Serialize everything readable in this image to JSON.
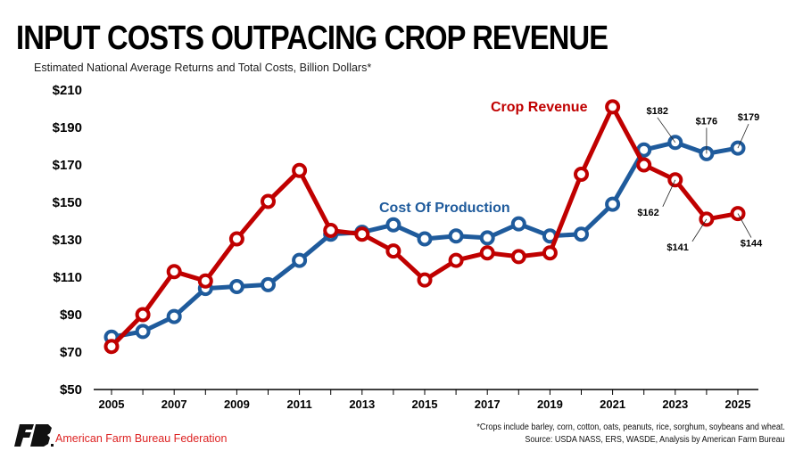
{
  "title": "INPUT COSTS OUTPACING CROP REVENUE",
  "subtitle": "Estimated National Average Returns and Total Costs, Billion Dollars*",
  "footnote": "*Crops include barley, corn, cotton, oats, peanuts, rice, sorghum, soybeans and wheat.",
  "source": "Source: USDA NASS, ERS, WASDE, Analysis by American Farm Bureau",
  "organization": "American Farm Bureau Federation",
  "logo_text": "FB",
  "chart_data": {
    "type": "line",
    "title": "INPUT COSTS OUTPACING CROP REVENUE",
    "ylabel": "Estimated National Average Returns and Total Costs, Billion Dollars*",
    "ylim": [
      50,
      210
    ],
    "yticks": [
      50,
      70,
      90,
      110,
      130,
      150,
      170,
      190,
      210
    ],
    "ytick_labels": [
      "$50",
      "$70",
      "$90",
      "$110",
      "$130",
      "$150",
      "$170",
      "$190",
      "$210"
    ],
    "x": [
      2005,
      2006,
      2007,
      2008,
      2009,
      2010,
      2011,
      2012,
      2013,
      2014,
      2015,
      2016,
      2017,
      2018,
      2019,
      2020,
      2021,
      2022,
      2023,
      2024,
      2025
    ],
    "xtick_labels": [
      "2005",
      "2007",
      "2009",
      "2011",
      "2013",
      "2015",
      "2017",
      "2019",
      "2021",
      "2023",
      "2025"
    ],
    "grid": false,
    "series": [
      {
        "name": "Cost Of Production",
        "color": "#1f5b9c",
        "values": [
          78,
          81,
          89,
          104,
          105,
          106,
          119,
          133,
          134,
          138,
          130.5,
          132,
          131,
          138.5,
          132,
          133,
          149,
          178,
          182,
          176,
          179
        ]
      },
      {
        "name": "Crop Revenue",
        "color": "#c00000",
        "values": [
          73,
          90,
          113,
          108,
          130.5,
          150.5,
          167,
          135,
          133,
          124,
          108.5,
          119,
          123,
          121,
          123,
          165,
          201,
          170,
          162,
          141,
          144
        ]
      }
    ],
    "annotations": [
      {
        "text": "$182",
        "series": 0,
        "x": 2023
      },
      {
        "text": "$176",
        "series": 0,
        "x": 2024
      },
      {
        "text": "$179",
        "series": 0,
        "x": 2025
      },
      {
        "text": "$162",
        "series": 1,
        "x": 2023
      },
      {
        "text": "$141",
        "series": 1,
        "x": 2024
      },
      {
        "text": "$144",
        "series": 1,
        "x": 2025
      }
    ]
  }
}
